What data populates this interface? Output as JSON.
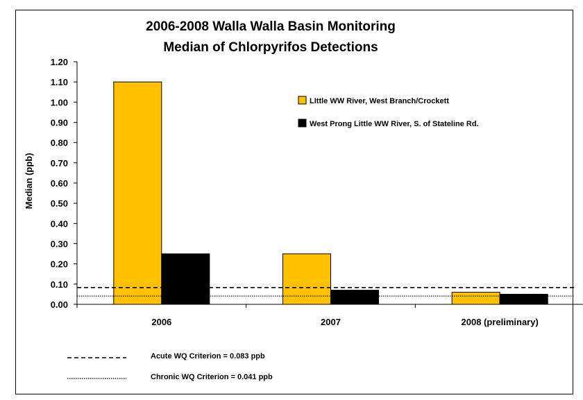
{
  "chart_data": {
    "type": "bar",
    "title": "2006-2008 Walla Walla Basin Monitoring",
    "subtitle": "Median of Chlorpyrifos Detections",
    "xlabel": "",
    "ylabel": "Median (ppb)",
    "ylim": [
      0,
      1.2
    ],
    "yticks": [
      "0.00",
      "0.10",
      "0.20",
      "0.30",
      "0.40",
      "0.50",
      "0.60",
      "0.70",
      "0.80",
      "0.90",
      "1.00",
      "1.10",
      "1.20"
    ],
    "grid": false,
    "legend_position": "top-right",
    "categories": [
      "2006",
      "2007",
      "2008 (preliminary)"
    ],
    "series": [
      {
        "name": "LIttle WW River, West Branch/Crockett",
        "color": "#FFC000",
        "values": [
          1.1,
          0.25,
          0.06
        ]
      },
      {
        "name": "West Prong Little WW River, S. of Stateline Rd.",
        "color": "#000000",
        "values": [
          0.25,
          0.07,
          0.05
        ]
      }
    ],
    "reference_lines": [
      {
        "name": "Acute WQ Criterion = 0.083 ppb",
        "value": 0.083,
        "style": "dashed"
      },
      {
        "name": "Chronic WQ Criterion = 0.041 ppb",
        "value": 0.041,
        "style": "dotted"
      }
    ]
  }
}
